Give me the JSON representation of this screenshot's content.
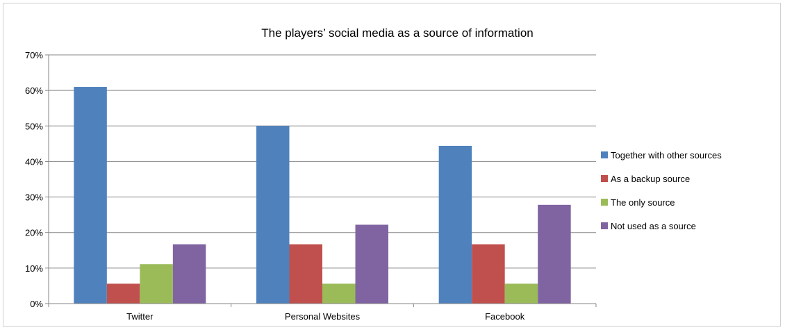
{
  "chart_data": {
    "type": "bar",
    "title": "The players’ social media as a source of information",
    "categories": [
      "Twitter",
      "Personal Websites",
      "Facebook"
    ],
    "ylim": [
      0,
      70
    ],
    "yticks": [
      "0%",
      "10%",
      "20%",
      "30%",
      "40%",
      "50%",
      "60%",
      "70%"
    ],
    "grid": true,
    "legend_position": "right",
    "series": [
      {
        "name": "Together with other sources",
        "color": "#4f81bd",
        "values": [
          61,
          50,
          44.4
        ]
      },
      {
        "name": "As a backup source",
        "color": "#c0504d",
        "values": [
          5.6,
          16.7,
          16.7
        ]
      },
      {
        "name": "The only source",
        "color": "#9bbb59",
        "values": [
          11.1,
          5.6,
          5.6
        ]
      },
      {
        "name": "Not used as a source",
        "color": "#8064a2",
        "values": [
          16.7,
          22.2,
          27.8
        ]
      }
    ]
  }
}
